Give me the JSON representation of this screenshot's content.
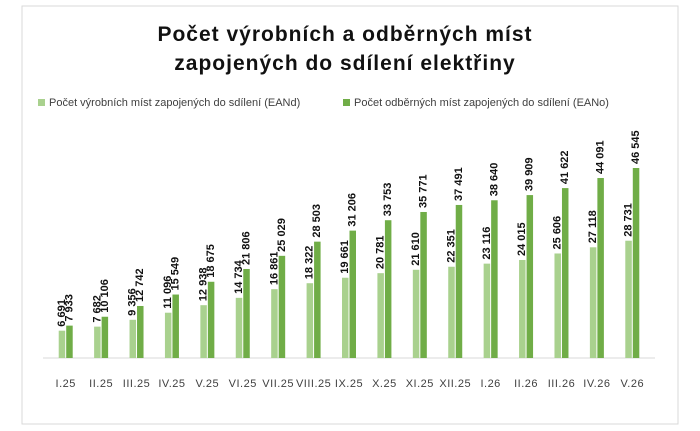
{
  "chart_data": {
    "type": "bar",
    "title": "Počet výrobních a odběrných míst zapojených do sdílení elektřiny",
    "categories": [
      "I.25",
      "II.25",
      "III.25",
      "IV.25",
      "V.25",
      "VI.25",
      "VII.25",
      "VIII.25",
      "IX.25",
      "X.25",
      "XI.25",
      "XII.25",
      "I.26",
      "II.26",
      "III.26",
      "IV.26",
      "V.26"
    ],
    "series": [
      {
        "name": "Počet výrobních míst zapojených do sdílení (EANd)",
        "color": "#a9d18e",
        "values": [
          6691,
          7682,
          9356,
          11096,
          12938,
          14734,
          16861,
          18322,
          19661,
          20781,
          21610,
          22351,
          23116,
          24015,
          25606,
          27118,
          28731
        ],
        "value_labels": [
          "6 691",
          "7 682",
          "9 356",
          "11 096",
          "12 938",
          "14 734",
          "16 861",
          "18 322",
          "19 661",
          "20 781",
          "21 610",
          "22 351",
          "23 116",
          "24 015",
          "25 606",
          "27 118",
          "28 731"
        ]
      },
      {
        "name": "Počet odběrných míst zapojených do sdílení (EANo)",
        "color": "#70ad47",
        "values": [
          7933,
          10106,
          12742,
          15549,
          18675,
          21806,
          25029,
          28503,
          31206,
          33753,
          35771,
          37491,
          38640,
          39909,
          41622,
          44091,
          46545
        ],
        "value_labels": [
          "7 933",
          "10 106",
          "12 742",
          "15 549",
          "18 675",
          "21 806",
          "25 029",
          "28 503",
          "31 206",
          "33 753",
          "35 771",
          "37 491",
          "38 640",
          "39 909",
          "41 622",
          "44 091",
          "46 545"
        ]
      }
    ],
    "legend": "top"
  }
}
